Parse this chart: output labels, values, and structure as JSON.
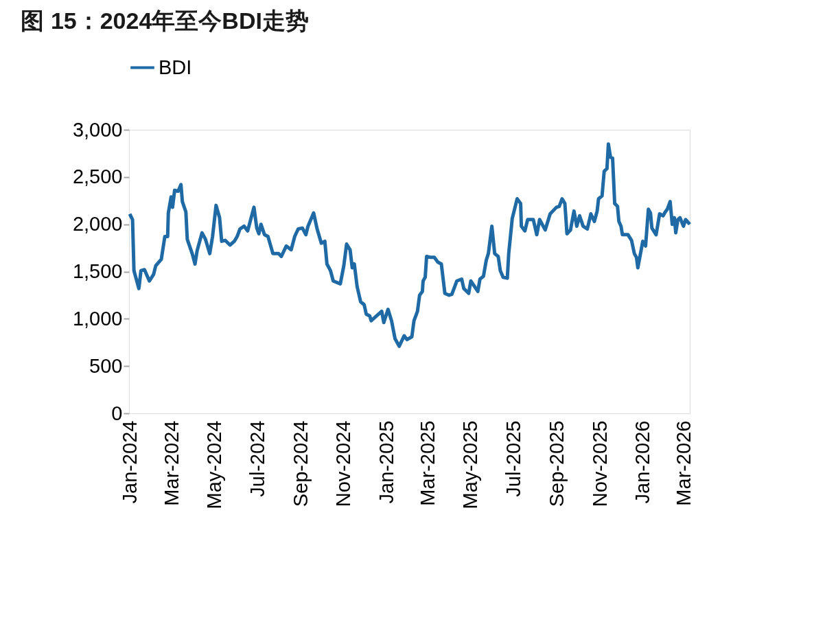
{
  "chart_data": {
    "type": "line",
    "title": "图 15：2024年至今BDI走势",
    "legend": "top",
    "xlim": [
      "2024-01-01",
      "2026-03-10"
    ],
    "xticks": [
      {
        "value": "2024-01-01",
        "label": "Jan-2024"
      },
      {
        "value": "2024-03-01",
        "label": "Mar-2024"
      },
      {
        "value": "2024-05-01",
        "label": "May-2024"
      },
      {
        "value": "2024-07-01",
        "label": "Jul-2024"
      },
      {
        "value": "2024-09-01",
        "label": "Sep-2024"
      },
      {
        "value": "2024-11-01",
        "label": "Nov-2024"
      },
      {
        "value": "2025-01-01",
        "label": "Jan-2025"
      },
      {
        "value": "2025-03-01",
        "label": "Mar-2025"
      },
      {
        "value": "2025-05-01",
        "label": "May-2025"
      },
      {
        "value": "2025-07-01",
        "label": "Jul-2025"
      },
      {
        "value": "2025-09-01",
        "label": "Sep-2025"
      },
      {
        "value": "2025-11-01",
        "label": "Nov-2025"
      },
      {
        "value": "2026-01-01",
        "label": "Jan-2026"
      },
      {
        "value": "2026-03-01",
        "label": "Mar-2026"
      }
    ],
    "ylim": [
      0,
      3000
    ],
    "yticks": [
      0,
      500,
      {
        "value": 1000,
        "label": "1,000"
      },
      {
        "value": 1500,
        "label": "1,500"
      },
      {
        "value": 2000,
        "label": "2,000"
      },
      {
        "value": 2500,
        "label": "2,500"
      },
      {
        "value": 3000,
        "label": "3,000"
      }
    ],
    "series": [
      {
        "name": "BDI",
        "color": "#1f6aa5",
        "x": [
          "2024-01-02",
          "2024-01-06",
          "2024-01-08",
          "2024-01-15",
          "2024-01-18",
          "2024-01-23",
          "2024-01-30",
          "2024-02-05",
          "2024-02-08",
          "2024-02-16",
          "2024-02-21",
          "2024-02-25",
          "2024-02-26",
          "2024-03-01",
          "2024-03-03",
          "2024-03-06",
          "2024-03-11",
          "2024-03-15",
          "2024-03-17",
          "2024-03-22",
          "2024-03-24",
          "2024-03-31",
          "2024-04-04",
          "2024-04-07",
          "2024-04-14",
          "2024-04-19",
          "2024-04-25",
          "2024-04-29",
          "2024-05-04",
          "2024-05-09",
          "2024-05-12",
          "2024-05-17",
          "2024-05-24",
          "2024-05-30",
          "2024-06-03",
          "2024-06-07",
          "2024-06-13",
          "2024-06-18",
          "2024-06-27",
          "2024-07-01",
          "2024-07-04",
          "2024-07-07",
          "2024-07-12",
          "2024-07-17",
          "2024-07-24",
          "2024-08-01",
          "2024-08-05",
          "2024-08-12",
          "2024-08-19",
          "2024-08-24",
          "2024-08-29",
          "2024-09-04",
          "2024-09-09",
          "2024-09-12",
          "2024-09-20",
          "2024-09-25",
          "2024-10-01",
          "2024-10-06",
          "2024-10-09",
          "2024-10-14",
          "2024-10-18",
          "2024-10-28",
          "2024-11-02",
          "2024-11-06",
          "2024-11-11",
          "2024-11-14",
          "2024-11-17",
          "2024-11-21",
          "2024-11-26",
          "2024-12-01",
          "2024-12-04",
          "2024-12-09",
          "2024-12-11",
          "2024-12-26",
          "2024-12-29",
          "2025-01-04",
          "2025-01-09",
          "2025-01-14",
          "2025-01-20",
          "2025-01-27",
          "2025-01-31",
          "2025-02-07",
          "2025-02-10",
          "2025-02-15",
          "2025-02-18",
          "2025-02-22",
          "2025-02-23",
          "2025-02-26",
          "2025-02-28",
          "2025-03-06",
          "2025-03-11",
          "2025-03-16",
          "2025-03-21",
          "2025-03-26",
          "2025-04-01",
          "2025-04-05",
          "2025-04-12",
          "2025-04-19",
          "2025-04-22",
          "2025-04-29",
          "2025-05-02",
          "2025-05-12",
          "2025-05-15",
          "2025-05-20",
          "2025-05-24",
          "2025-05-27",
          "2025-06-01",
          "2025-06-05",
          "2025-06-10",
          "2025-06-13",
          "2025-06-17",
          "2025-06-23",
          "2025-06-25",
          "2025-06-30",
          "2025-07-07",
          "2025-07-12",
          "2025-07-13",
          "2025-07-18",
          "2025-07-22",
          "2025-07-30",
          "2025-08-04",
          "2025-08-08",
          "2025-08-16",
          "2025-08-23",
          "2025-09-01",
          "2025-09-05",
          "2025-09-09",
          "2025-09-13",
          "2025-09-16",
          "2025-09-21",
          "2025-09-26",
          "2025-09-30",
          "2025-10-04",
          "2025-10-09",
          "2025-10-15",
          "2025-10-20",
          "2025-10-25",
          "2025-10-29",
          "2025-10-31",
          "2025-11-05",
          "2025-11-08",
          "2025-11-12",
          "2025-11-14",
          "2025-11-17",
          "2025-11-20",
          "2025-11-23",
          "2025-11-27",
          "2025-11-29",
          "2025-12-02",
          "2025-12-04",
          "2025-12-12",
          "2025-12-17",
          "2025-12-21",
          "2025-12-24",
          "2025-12-26",
          "2026-01-02",
          "2026-01-06",
          "2026-01-10",
          "2026-01-13",
          "2026-01-15",
          "2026-01-21",
          "2026-01-26",
          "2026-01-31",
          "2026-02-03",
          "2026-02-06",
          "2026-02-10",
          "2026-02-13",
          "2026-02-16",
          "2026-02-18",
          "2026-02-21",
          "2026-02-24",
          "2026-03-01",
          "2026-03-04",
          "2026-03-10"
        ],
        "values": [
          2110,
          2050,
          1510,
          1320,
          1510,
          1520,
          1400,
          1470,
          1560,
          1630,
          1870,
          1870,
          2120,
          2290,
          2180,
          2360,
          2350,
          2420,
          2240,
          2130,
          1840,
          1690,
          1580,
          1720,
          1910,
          1840,
          1690,
          1870,
          2200,
          2070,
          1820,
          1830,
          1780,
          1820,
          1870,
          1950,
          1980,
          1930,
          2180,
          1960,
          1900,
          2000,
          1890,
          1870,
          1690,
          1690,
          1660,
          1770,
          1730,
          1870,
          1950,
          1960,
          1890,
          1980,
          2120,
          1950,
          1800,
          1820,
          1580,
          1510,
          1400,
          1370,
          1560,
          1790,
          1730,
          1540,
          1580,
          1340,
          1180,
          1150,
          1050,
          1030,
          980,
          1080,
          960,
          1100,
          980,
          790,
          710,
          820,
          780,
          810,
          980,
          1080,
          1250,
          1290,
          1400,
          1440,
          1660,
          1650,
          1650,
          1600,
          1580,
          1270,
          1250,
          1260,
          1400,
          1420,
          1320,
          1270,
          1400,
          1290,
          1420,
          1450,
          1620,
          1690,
          1980,
          1690,
          1660,
          1510,
          1440,
          1430,
          1690,
          2060,
          2270,
          2220,
          1980,
          1930,
          2050,
          2050,
          1890,
          2050,
          1940,
          2110,
          2180,
          2190,
          2270,
          2220,
          1900,
          1940,
          2140,
          1980,
          2090,
          1980,
          1950,
          2110,
          2030,
          2140,
          2270,
          2300,
          2560,
          2590,
          2850,
          2710,
          2700,
          2220,
          2190,
          2030,
          1980,
          1890,
          1890,
          1830,
          1690,
          1650,
          1540,
          1820,
          1770,
          2160,
          2120,
          1960,
          1890,
          2110,
          2090,
          2130,
          2160,
          2240,
          2000,
          2070,
          1910,
          2050,
          2070,
          1980,
          2050,
          2000
        ]
      }
    ]
  }
}
